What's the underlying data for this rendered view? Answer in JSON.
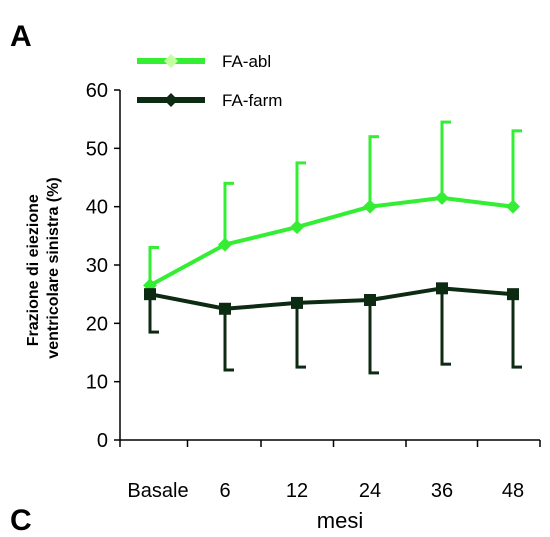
{
  "panel_labels": {
    "top": "A",
    "bottom": "C"
  },
  "chart_data": {
    "type": "line",
    "categories": [
      "Basale",
      "6",
      "12",
      "24",
      "36",
      "48"
    ],
    "xlabel": "mesi",
    "ylabel_lines": [
      "Frazione di eiezione",
      "ventricolare sinistra (%)"
    ],
    "ylim": [
      0,
      60
    ],
    "yticks": [
      0,
      10,
      20,
      30,
      40,
      50,
      60
    ],
    "grid": false,
    "legend_position": "top-left",
    "series": [
      {
        "name": "FA-abl",
        "color": "#33ee33",
        "marker": "diamond",
        "values": [
          26.5,
          33.5,
          36.5,
          40,
          41.5,
          40
        ],
        "error_upper": [
          33,
          44,
          47.5,
          52,
          54.5,
          53
        ]
      },
      {
        "name": "FA-farm",
        "color": "#0d2b12",
        "marker": "square",
        "values": [
          25,
          22.5,
          23.5,
          24,
          26,
          25
        ],
        "error_lower": [
          18.5,
          12,
          12.5,
          11.5,
          13,
          12.5
        ]
      }
    ]
  }
}
